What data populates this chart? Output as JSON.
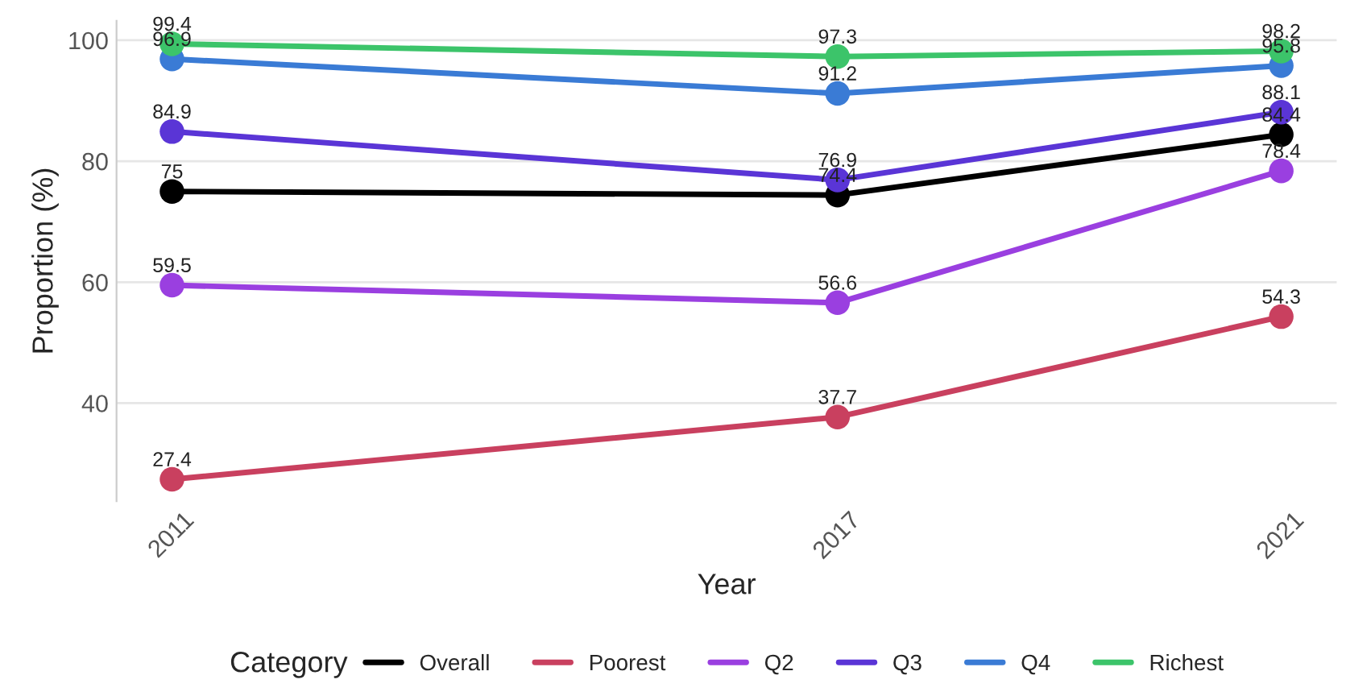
{
  "chart_data": {
    "type": "line",
    "xlabel": "Year",
    "ylabel": "Proportion (%)",
    "legend_title": "Category",
    "x": [
      2011,
      2017,
      2021
    ],
    "series": [
      {
        "name": "Overall",
        "color": "#000000",
        "values": [
          75,
          74.4,
          84.4
        ]
      },
      {
        "name": "Poorest",
        "color": "#c9405f",
        "values": [
          27.4,
          37.7,
          54.3
        ]
      },
      {
        "name": "Q2",
        "color": "#9a3fe0",
        "values": [
          59.5,
          56.6,
          78.4
        ]
      },
      {
        "name": "Q3",
        "color": "#5a35d6",
        "values": [
          84.9,
          76.9,
          88.1
        ]
      },
      {
        "name": "Q4",
        "color": "#3a7bd5",
        "values": [
          96.9,
          91.2,
          95.8
        ]
      },
      {
        "name": "Richest",
        "color": "#3cc46a",
        "values": [
          99.4,
          97.3,
          98.2
        ]
      }
    ],
    "xlim": [
      2010.5,
      2021.5
    ],
    "xticks": [
      2011,
      2017,
      2021
    ],
    "ylim": [
      23.8,
      103.2
    ],
    "yticks": [
      40,
      60,
      80,
      100
    ],
    "data_labels": true,
    "grid": "y",
    "legend": "bottom",
    "marker": "circle",
    "line_style": "solid"
  }
}
